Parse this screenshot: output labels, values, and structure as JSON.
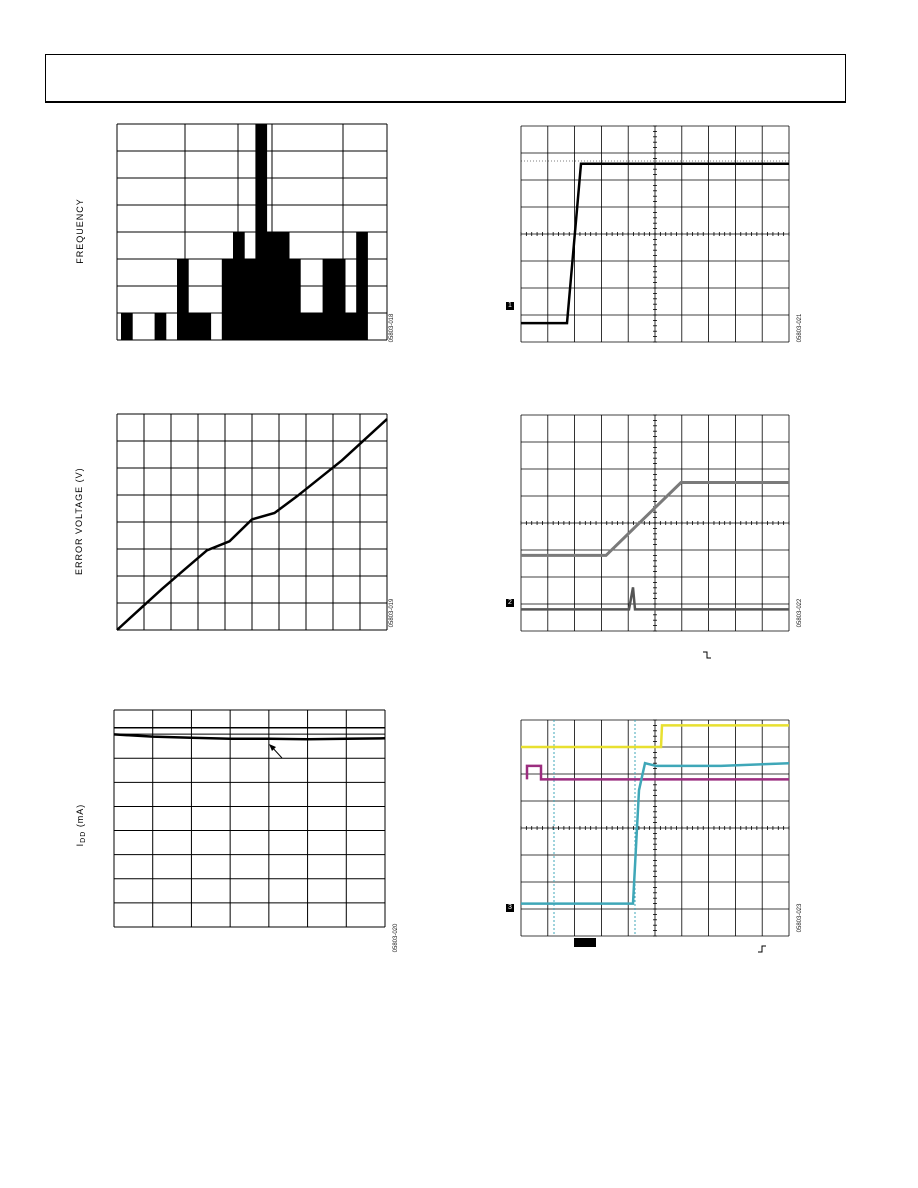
{
  "labels": {
    "frequency": "FREQUENCY",
    "error_voltage": "ERROR VOLTAGE (V)",
    "idd": "I",
    "idd_sub": "DD",
    "idd_unit": " (mA)"
  },
  "figure_ids": {
    "fig1": "05803-018",
    "fig2": "05803-019",
    "fig3": "05803-020",
    "fig4": "05803-021",
    "fig5": "05803-022",
    "fig6": "05803-023"
  },
  "colors": {
    "ink": "#000000",
    "trace_gray": "#7a7a7a",
    "trace_yellow": "#e8e030",
    "trace_magenta": "#9b2d7f",
    "trace_cyan": "#3fa7b8"
  },
  "chart_data": [
    {
      "type": "bar",
      "ylabel": "FREQUENCY",
      "values": [
        1,
        0,
        0,
        1,
        0,
        3,
        1,
        1,
        0,
        3,
        4,
        3,
        8,
        4,
        4,
        3,
        1,
        1,
        3,
        3,
        1,
        4
      ],
      "ylim": [
        0,
        8
      ],
      "grid": true
    },
    {
      "type": "line",
      "ylabel": "ERROR VOLTAGE (V)",
      "series": [
        {
          "values": [
            0.0,
            0.8,
            1.6,
            2.35,
            3.1,
            3.45,
            4.3,
            4.55,
            5.2,
            5.9,
            6.6,
            7.4,
            8.2
          ]
        }
      ],
      "grid": true
    },
    {
      "type": "line",
      "ylabel": "IDD (mA)",
      "series": [
        {
          "values": [
            9.0,
            9.0,
            9.0,
            9.0,
            9.0,
            9.0,
            9.0,
            9.0
          ]
        },
        {
          "values": [
            8.7,
            8.6,
            8.55,
            8.5,
            8.5,
            8.48,
            8.5,
            8.52
          ]
        }
      ],
      "grid": true
    },
    {
      "type": "line",
      "series": [
        {
          "values": [
            0.7,
            0.7,
            0.7,
            6.6,
            6.6,
            6.6,
            6.6,
            6.6,
            6.6
          ]
        }
      ],
      "grid": true
    },
    {
      "type": "line",
      "series": [
        {
          "values": [
            2.8,
            2.8,
            2.8,
            2.8,
            4.4,
            5.5,
            5.5,
            5.5
          ]
        },
        {
          "values": [
            0.8,
            0.8,
            0.8,
            0.8,
            0.85,
            0.8,
            0.8,
            0.8
          ]
        }
      ],
      "grid": true
    },
    {
      "type": "line",
      "series": [
        {
          "values": [
            7.0,
            7.0,
            7.0,
            7.0,
            7.0,
            7.8,
            7.8,
            7.8,
            7.8
          ]
        },
        {
          "values": [
            6.3,
            5.8,
            5.8,
            5.8,
            5.8,
            5.8,
            5.8,
            5.8,
            5.8
          ]
        },
        {
          "values": [
            1.2,
            1.2,
            1.2,
            1.2,
            1.2,
            6.4,
            6.3,
            6.3,
            6.4
          ]
        }
      ],
      "grid": true
    }
  ]
}
